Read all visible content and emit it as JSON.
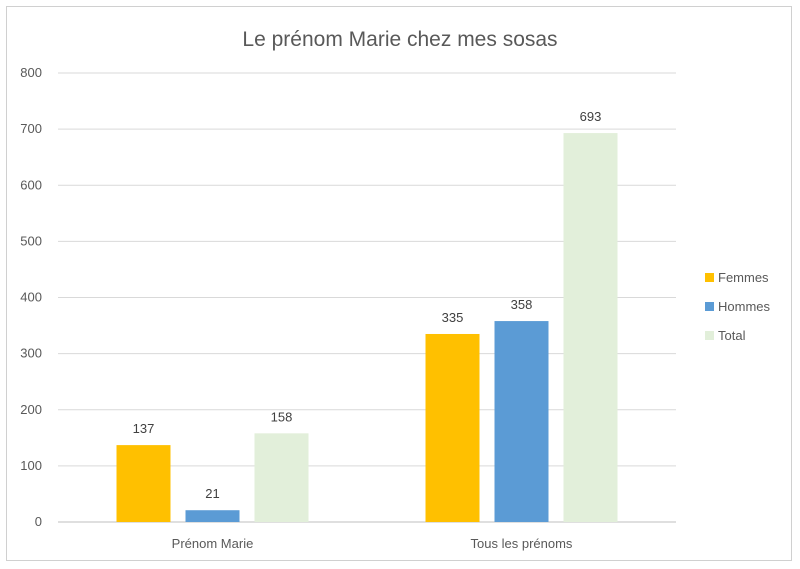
{
  "chart_data": {
    "type": "bar",
    "title": "Le prénom Marie chez mes sosas",
    "categories": [
      "Prénom Marie",
      "Tous les prénoms"
    ],
    "series": [
      {
        "name": "Femmes",
        "values": [
          137,
          335
        ],
        "color": "#FFC000"
      },
      {
        "name": "Hommes",
        "values": [
          21,
          358
        ],
        "color": "#5B9BD5"
      },
      {
        "name": "Total",
        "values": [
          158,
          693
        ],
        "color": "#E2EFDA"
      }
    ],
    "ylim": [
      0,
      800
    ],
    "yticks": [
      0,
      100,
      200,
      300,
      400,
      500,
      600,
      700,
      800
    ],
    "grid": true,
    "legend_position": "right",
    "xlabel": "",
    "ylabel": ""
  }
}
